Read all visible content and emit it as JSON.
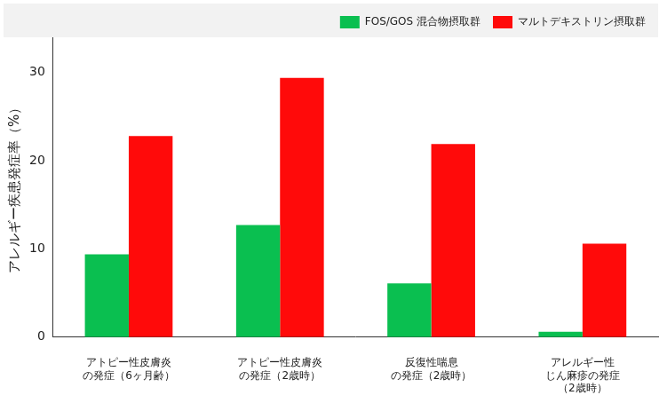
{
  "chart_data": {
    "type": "bar",
    "y_label": "アレルギー疾患発症率（%）",
    "categories": [
      [
        "アトピー性皮膚炎",
        "の発症（6ヶ月齢）"
      ],
      [
        "アトピー性皮膚炎",
        "の発症（2歳時）"
      ],
      [
        "反復性喘息",
        "の発症（2歳時）"
      ],
      [
        "アレルギー性",
        "じん麻疹の発症",
        "（2歳時）"
      ]
    ],
    "series": [
      {
        "name": "FOS/GOS 混合物摂取群",
        "color": "#0abf50",
        "values": [
          9.4,
          12.7,
          6.1,
          0.6
        ]
      },
      {
        "name": "マルトデキストリン摂取群",
        "color": "#ff0a0a",
        "values": [
          22.8,
          29.4,
          21.9,
          10.6
        ]
      }
    ],
    "ylim": [
      0,
      34
    ],
    "yticks": [
      0,
      10,
      20,
      30
    ],
    "grid": false,
    "legend": "top"
  }
}
